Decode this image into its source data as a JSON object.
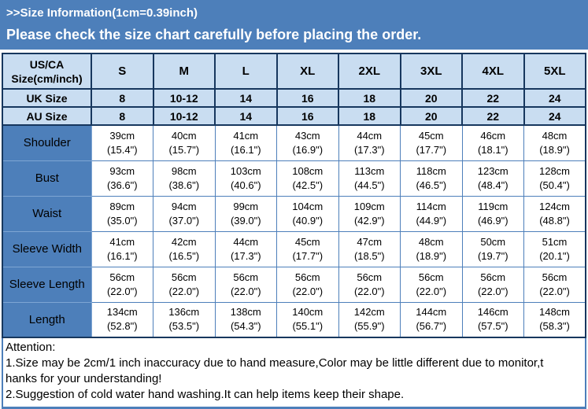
{
  "banner": {
    "line1": ">>Size Information(1cm=0.39inch)",
    "line2": "Please check the size chart carefully before placing the order."
  },
  "size_chart": {
    "corner": {
      "line1": "US/CA",
      "line2": "Size(cm/inch)"
    },
    "sizes": [
      "S",
      "M",
      "L",
      "XL",
      "2XL",
      "3XL",
      "4XL",
      "5XL"
    ],
    "uk": {
      "label": "UK Size",
      "values": [
        "8",
        "10-12",
        "14",
        "16",
        "18",
        "20",
        "22",
        "24"
      ]
    },
    "au": {
      "label": "AU Size",
      "values": [
        "8",
        "10-12",
        "14",
        "16",
        "18",
        "20",
        "22",
        "24"
      ]
    },
    "measurements": [
      {
        "label": "Shoulder",
        "cm": [
          "39cm",
          "40cm",
          "41cm",
          "43cm",
          "44cm",
          "45cm",
          "46cm",
          "48cm"
        ],
        "inch": [
          "(15.4\")",
          "(15.7\")",
          "(16.1\")",
          "(16.9\")",
          "(17.3\")",
          "(17.7\")",
          "(18.1\")",
          "(18.9\")"
        ]
      },
      {
        "label": "Bust",
        "cm": [
          "93cm",
          "98cm",
          "103cm",
          "108cm",
          "113cm",
          "118cm",
          "123cm",
          "128cm"
        ],
        "inch": [
          "(36.6\")",
          "(38.6\")",
          "(40.6\")",
          "(42.5\")",
          "(44.5\")",
          "(46.5\")",
          "(48.4\")",
          "(50.4\")"
        ]
      },
      {
        "label": "Waist",
        "cm": [
          "89cm",
          "94cm",
          "99cm",
          "104cm",
          "109cm",
          "114cm",
          "119cm",
          "124cm"
        ],
        "inch": [
          "(35.0\")",
          "(37.0\")",
          "(39.0\")",
          "(40.9\")",
          "(42.9\")",
          "(44.9\")",
          "(46.9\")",
          "(48.8\")"
        ]
      },
      {
        "label": "Sleeve Width",
        "cm": [
          "41cm",
          "42cm",
          "44cm",
          "45cm",
          "47cm",
          "48cm",
          "50cm",
          "51cm"
        ],
        "inch": [
          "(16.1\")",
          "(16.5\")",
          "(17.3\")",
          "(17.7\")",
          "(18.5\")",
          "(18.9\")",
          "(19.7\")",
          "(20.1\")"
        ]
      },
      {
        "label": "Sleeve Length",
        "cm": [
          "56cm",
          "56cm",
          "56cm",
          "56cm",
          "56cm",
          "56cm",
          "56cm",
          "56cm"
        ],
        "inch": [
          "(22.0\")",
          "(22.0\")",
          "(22.0\")",
          "(22.0\")",
          "(22.0\")",
          "(22.0\")",
          "(22.0\")",
          "(22.0\")"
        ]
      },
      {
        "label": "Length",
        "cm": [
          "134cm",
          "136cm",
          "138cm",
          "140cm",
          "142cm",
          "144cm",
          "146cm",
          "148cm"
        ],
        "inch": [
          "(52.8\")",
          "(53.5\")",
          "(54.3\")",
          "(55.1\")",
          "(55.9\")",
          "(56.7\")",
          "(57.5\")",
          "(58.3\")"
        ]
      }
    ]
  },
  "attention": {
    "title": "Attention:",
    "lines": [
      "1.Size may be 2cm/1 inch inaccuracy due to hand measure,Color may be little different due to monitor,t",
      "hanks for your understanding!",
      "2.Suggestion of cold water hand washing.It can help items keep their shape."
    ]
  },
  "colors": {
    "banner_bg": "#4d7fba",
    "header_cell_bg": "#c9ddf1",
    "label_cell_bg": "#4d7fba",
    "header_border": "#17375e",
    "body_border": "#4d7fba",
    "banner_text": "#ffffff",
    "table_text": "#000000"
  }
}
